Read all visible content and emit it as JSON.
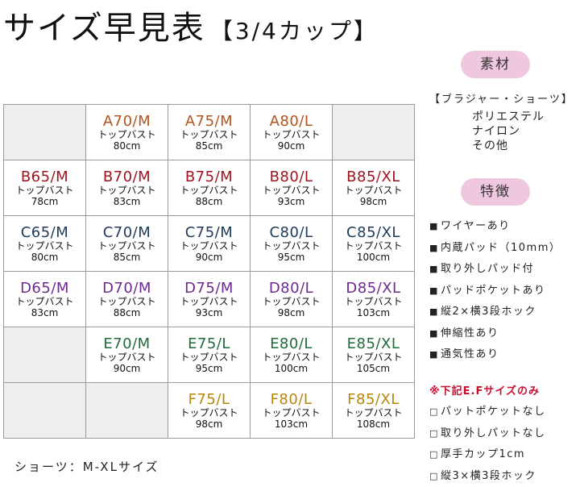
{
  "title": {
    "main": "サイズ早見表",
    "sub": "【3/4カップ】"
  },
  "grid": {
    "rows": [
      [
        null,
        {
          "size": "A70/M",
          "label": "トップバスト",
          "value": "80cm",
          "color": "#b3541e"
        },
        {
          "size": "A75/M",
          "label": "トップバスト",
          "value": "85cm",
          "color": "#b3541e"
        },
        {
          "size": "A80/L",
          "label": "トップバスト",
          "value": "90cm",
          "color": "#b3541e"
        },
        null
      ],
      [
        {
          "size": "B65/M",
          "label": "トップバスト",
          "value": "78cm",
          "color": "#a0141e"
        },
        {
          "size": "B70/M",
          "label": "トップバスト",
          "value": "83cm",
          "color": "#a0141e"
        },
        {
          "size": "B75/M",
          "label": "トップバスト",
          "value": "88cm",
          "color": "#a0141e"
        },
        {
          "size": "B80/L",
          "label": "トップバスト",
          "value": "93cm",
          "color": "#a0141e"
        },
        {
          "size": "B85/XL",
          "label": "トップバスト",
          "value": "98cm",
          "color": "#a0141e"
        }
      ],
      [
        {
          "size": "C65/M",
          "label": "トップバスト",
          "value": "80cm",
          "color": "#1f3a5a"
        },
        {
          "size": "C70/M",
          "label": "トップバスト",
          "value": "85cm",
          "color": "#1f3a5a"
        },
        {
          "size": "C75/M",
          "label": "トップバスト",
          "value": "90cm",
          "color": "#1f3a5a"
        },
        {
          "size": "C80/L",
          "label": "トップバスト",
          "value": "95cm",
          "color": "#1f3a5a"
        },
        {
          "size": "C85/XL",
          "label": "トップバスト",
          "value": "100cm",
          "color": "#1f3a5a"
        }
      ],
      [
        {
          "size": "D65/M",
          "label": "トップバスト",
          "value": "83cm",
          "color": "#6b2a8c"
        },
        {
          "size": "D70/M",
          "label": "トップバスト",
          "value": "88cm",
          "color": "#6b2a8c"
        },
        {
          "size": "D75/M",
          "label": "トップバスト",
          "value": "93cm",
          "color": "#6b2a8c"
        },
        {
          "size": "D80/L",
          "label": "トップバスト",
          "value": "98cm",
          "color": "#6b2a8c"
        },
        {
          "size": "D85/XL",
          "label": "トップバスト",
          "value": "103cm",
          "color": "#6b2a8c"
        }
      ],
      [
        null,
        {
          "size": "E70/M",
          "label": "トップバスト",
          "value": "90cm",
          "color": "#1f6b3a"
        },
        {
          "size": "E75/L",
          "label": "トップバスト",
          "value": "95cm",
          "color": "#1f6b3a"
        },
        {
          "size": "E80/L",
          "label": "トップバスト",
          "value": "100cm",
          "color": "#1f6b3a"
        },
        {
          "size": "E85/XL",
          "label": "トップバスト",
          "value": "105cm",
          "color": "#1f6b3a"
        }
      ],
      [
        null,
        null,
        {
          "size": "F75/L",
          "label": "トップバスト",
          "value": "98cm",
          "color": "#b8860b"
        },
        {
          "size": "F80/L",
          "label": "トップバスト",
          "value": "103cm",
          "color": "#b8860b"
        },
        {
          "size": "F85/XL",
          "label": "トップバスト",
          "value": "108cm",
          "color": "#b8860b"
        }
      ]
    ]
  },
  "footer": "ショーツ：M-XLサイズ",
  "material": {
    "pill": "素材",
    "heading": "【ブラジャー・ショーツ】",
    "items": [
      "ポリエステル",
      "ナイロン",
      "その他"
    ]
  },
  "features": {
    "pill": "特徴",
    "items": [
      "ワイヤーあり",
      "内蔵パッド（10mm）",
      "取り外しパッド付",
      "パッドポケットあり",
      "縦2×横3段ホック",
      "伸縮性あり",
      "通気性あり"
    ]
  },
  "note": {
    "heading": "※下記E.Fサイズのみ",
    "items": [
      "パットポケットなし",
      "取り外しパットなし",
      "厚手カップ1cm",
      "縦3×横3段ホック"
    ]
  },
  "colors": {
    "accent_pink": "#efc7de",
    "note_red": "#c8102e",
    "blank_cell": "#eeeeee"
  }
}
